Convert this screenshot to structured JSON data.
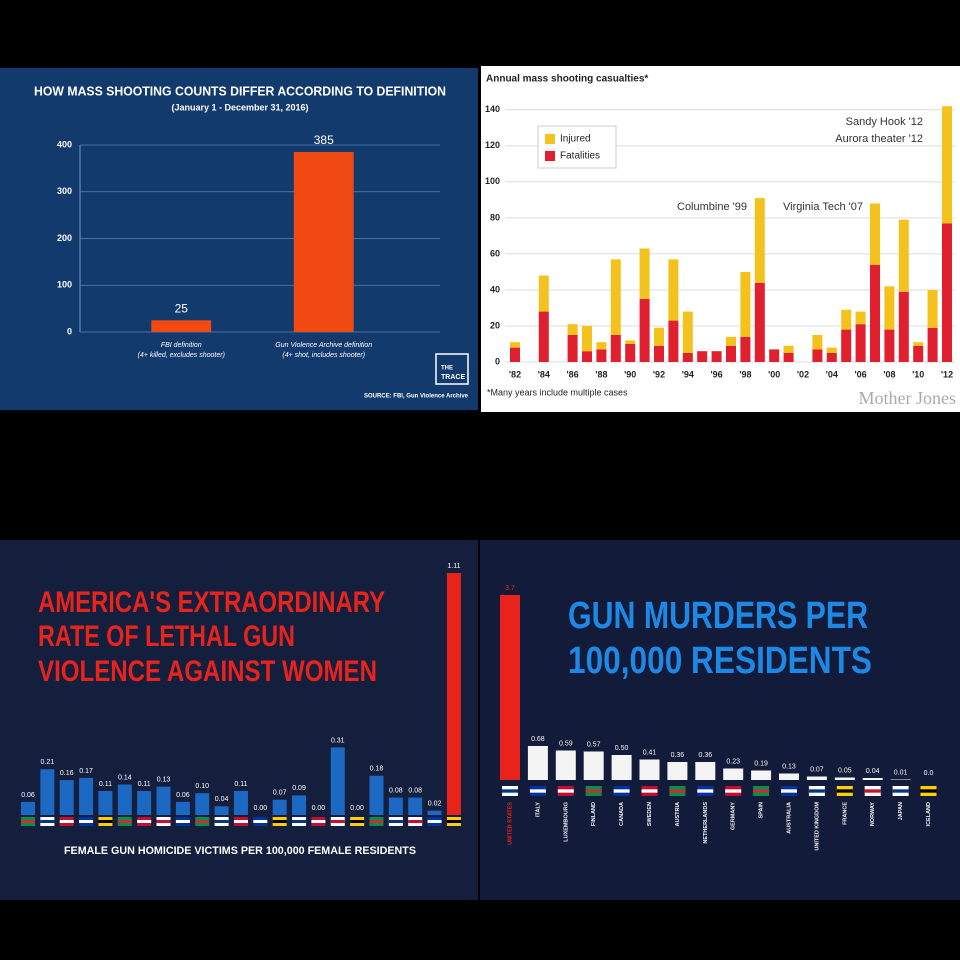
{
  "chart_data": [
    {
      "type": "bar",
      "title": "HOW MASS SHOOTING COUNTS DIFFER ACCORDING TO DEFINITION",
      "subtitle": "(January 1 - December 31, 2016)",
      "categories": [
        "FBI definition",
        "Gun Violence Archive definition"
      ],
      "category_notes": [
        "(4+ killed, excludes shooter)",
        "(4+ shot, includes shooter)"
      ],
      "values": [
        25,
        385
      ],
      "color": "#f04a12",
      "ylim": [
        0,
        400
      ],
      "yticks": [
        0,
        100,
        200,
        300,
        400
      ],
      "grid": true,
      "source": "SOURCE: FBI, Gun Violence Archive",
      "logo": [
        "THE",
        "TRACE"
      ]
    },
    {
      "type": "stacked_bar",
      "title": "Annual mass shooting casualties*",
      "categories": [
        "'82",
        null,
        "'84",
        null,
        "'86",
        null,
        "'88",
        null,
        "'90",
        null,
        "'92",
        null,
        "'94",
        null,
        "'96",
        null,
        "'98",
        null,
        "'00",
        null,
        "'02",
        null,
        "'04",
        null,
        "'06",
        null,
        "'08",
        null,
        "'10",
        null,
        "'12"
      ],
      "series": [
        {
          "name": "Fatalities",
          "color": "#e0202e",
          "values": [
            8,
            null,
            28,
            null,
            15,
            6,
            7,
            15,
            10,
            35,
            9,
            23,
            5,
            6,
            6,
            9,
            14,
            44,
            7,
            5,
            null,
            7,
            5,
            18,
            21,
            54,
            18,
            39,
            9,
            19,
            77
          ]
        },
        {
          "name": "Injured",
          "color": "#f4c21c",
          "values": [
            3,
            null,
            20,
            null,
            6,
            14,
            4,
            42,
            2,
            28,
            10,
            34,
            23,
            0,
            0,
            5,
            36,
            47,
            0,
            4,
            null,
            8,
            3,
            11,
            7,
            34,
            24,
            40,
            2,
            21,
            65
          ]
        }
      ],
      "ylim": [
        0,
        146
      ],
      "yticks": [
        0,
        20,
        40,
        60,
        80,
        100,
        120,
        140
      ],
      "grid": true,
      "annotations": [
        "Sandy Hook '12",
        "Aurora theater '12",
        "Columbine '99",
        "Virginia Tech '07"
      ],
      "footnote": "*Many years include multiple cases",
      "credit": "Mother Jones"
    },
    {
      "type": "bar",
      "title": [
        "AMERICA'S EXTRAORDINARY",
        "RATE OF LETHAL GUN",
        "VIOLENCE AGAINST WOMEN"
      ],
      "x_label": "FEMALE GUN HOMICIDE VICTIMS PER 100,000 FEMALE RESIDENTS",
      "values": [
        0.06,
        0.21,
        0.16,
        0.17,
        0.11,
        0.14,
        0.11,
        0.13,
        0.06,
        0.1,
        0.04,
        0.11,
        0,
        0.07,
        0.09,
        0,
        0.31,
        0,
        0.18,
        0.08,
        0.08,
        0.02,
        1.11
      ],
      "value_labels": [
        "0.06",
        "0.21",
        "0.16",
        "0.17",
        "0.11",
        "0.14",
        "0.11",
        "0.13",
        "0.06",
        "0.10",
        "0.04",
        "0.11",
        "0.00",
        "0.07",
        "0.09",
        "0.00",
        "0.31",
        "0.00",
        "0.18",
        "0.08",
        "0.08",
        "0.02",
        "1.11"
      ],
      "colors": [
        "#1c69c4",
        "#1c69c4",
        "#1c69c4",
        "#1c69c4",
        "#1c69c4",
        "#1c69c4",
        "#1c69c4",
        "#1c69c4",
        "#1c69c4",
        "#1c69c4",
        "#1c69c4",
        "#1c69c4",
        "#1c69c4",
        "#1c69c4",
        "#1c69c4",
        "#1c69c4",
        "#1c69c4",
        "#1c69c4",
        "#1c69c4",
        "#1c69c4",
        "#1c69c4",
        "#1c69c4",
        "#e8231c"
      ]
    },
    {
      "type": "bar",
      "title": [
        "GUN MURDERS PER",
        "100,000 RESIDENTS"
      ],
      "categories": [
        "UNITED STATES",
        "ITALY",
        "LUXEMBOURG",
        "FINLAND",
        "CANADA",
        "SWEDEN",
        "AUSTRIA",
        "NETHERLANDS",
        "GERMANY",
        "SPAIN",
        "AUSTRALIA",
        "UNITED KINGDOM",
        "FRANCE",
        "NORWAY",
        "JAPAN",
        "ICELAND"
      ],
      "values": [
        3.7,
        0.68,
        0.59,
        0.57,
        0.5,
        0.41,
        0.36,
        0.36,
        0.23,
        0.19,
        0.13,
        0.07,
        0.05,
        0.04,
        0.01,
        0
      ],
      "value_labels": [
        "3.7",
        "0.68",
        "0.59",
        "0.57",
        "0.50",
        "0.41",
        "0.36",
        "0.36",
        "0.23",
        "0.19",
        "0.13",
        "0.07",
        "0.05",
        "0.04",
        "0.01",
        "0.0"
      ],
      "colors": [
        "#e8231c",
        "#f4f4f4",
        "#f4f4f4",
        "#f4f4f4",
        "#f4f4f4",
        "#f4f4f4",
        "#f4f4f4",
        "#f4f4f4",
        "#f4f4f4",
        "#f4f4f4",
        "#f4f4f4",
        "#f4f4f4",
        "#f4f4f4",
        "#f4f4f4",
        "#f4f4f4",
        "#f4f4f4"
      ]
    }
  ]
}
